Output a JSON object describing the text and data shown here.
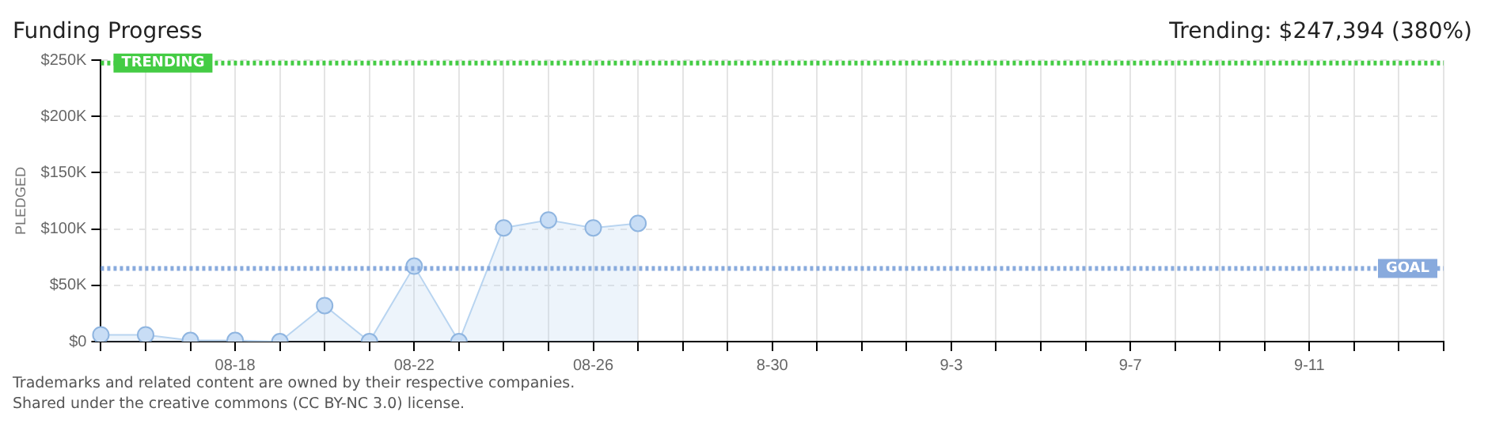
{
  "chart_data": {
    "type": "area",
    "title": "Funding Progress",
    "ylabel": "PLEDGED",
    "categories": [
      null,
      null,
      null,
      "08-18",
      null,
      null,
      null,
      "08-22",
      null,
      null,
      null,
      "08-26",
      null,
      null,
      null,
      "8-30",
      null,
      null,
      null,
      "9-3",
      null,
      null,
      null,
      "9-7",
      null,
      null,
      null,
      "9-11",
      null,
      null,
      null
    ],
    "series": [
      {
        "color": "#b8d4f0",
        "values": [
          6000,
          6000,
          1000,
          1000,
          0,
          32000,
          0,
          67000,
          0,
          101000,
          108000,
          101000,
          105000,
          null,
          null,
          null,
          null,
          null,
          null,
          null,
          null,
          null,
          null,
          null,
          null,
          null,
          null,
          null,
          null,
          null,
          null
        ]
      }
    ],
    "ylim": [
      0,
      250000
    ],
    "yticks": [
      {
        "value": 0,
        "label": "$0"
      },
      {
        "value": 50000,
        "label": "$50K"
      },
      {
        "value": 100000,
        "label": "$100K"
      },
      {
        "value": 150000,
        "label": "$150K"
      },
      {
        "value": 200000,
        "label": "$200K"
      },
      {
        "value": 250000,
        "label": "$250K"
      }
    ],
    "ref_lines": [
      {
        "axis": "y",
        "value": 247394,
        "label": "TRENDING",
        "color": "#44cc44",
        "line_style": "dotted"
      },
      {
        "axis": "y",
        "value": 65000,
        "label": "GOAL",
        "color": "#88aadd",
        "line_style": "dotted"
      }
    ],
    "annotations": [
      "Trending: $247,394 (380%)",
      "Trademarks and related content are owned by their respective companies.",
      "Shared under the creative commons (CC BY-NC 3.0) license."
    ],
    "grid": true,
    "legend": false,
    "marker": "circle",
    "line_style": "solid"
  }
}
